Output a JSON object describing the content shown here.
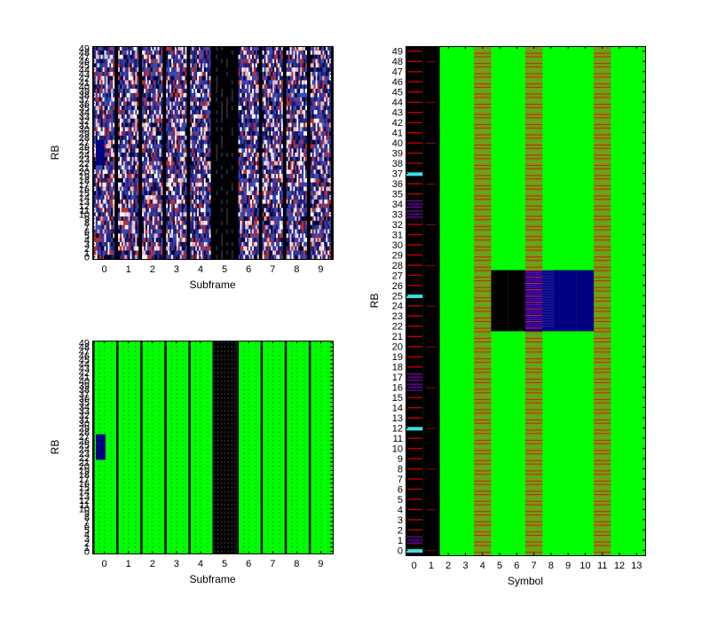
{
  "colors": {
    "green": "#00ff00",
    "black": "#000000",
    "navy": "#000080",
    "red": "#c00000",
    "cyan": "#40e0e0",
    "purple": "#8000c0",
    "white": "#ffffff"
  },
  "chart_data": [
    {
      "id": "top-left",
      "type": "heatmap",
      "content": "random-noise",
      "xlabel": "Subframe",
      "ylabel": "RB",
      "xticks": [
        "0",
        "1",
        "2",
        "3",
        "4",
        "5",
        "6",
        "7",
        "8",
        "9"
      ],
      "yticks": [
        "0",
        "1",
        "2",
        "3",
        "4",
        "5",
        "6",
        "7",
        "8",
        "9",
        "10",
        "11",
        "12",
        "13",
        "14",
        "15",
        "16",
        "17",
        "18",
        "19",
        "20",
        "21",
        "22",
        "23",
        "24",
        "25",
        "26",
        "27",
        "28",
        "29",
        "30",
        "31",
        "32",
        "33",
        "34",
        "35",
        "36",
        "37",
        "38",
        "39",
        "40",
        "41",
        "42",
        "43",
        "44",
        "45",
        "46",
        "47",
        "48",
        "49"
      ],
      "xlim": [
        -0.5,
        9.5
      ],
      "ylim": [
        -0.5,
        49.5
      ],
      "black_subframes": [
        5
      ],
      "highlight": {
        "subframe": 0,
        "rb_range": [
          22,
          27
        ],
        "color": "navy"
      }
    },
    {
      "id": "bottom-left",
      "type": "heatmap",
      "content": "allocation-grid",
      "xlabel": "Subframe",
      "ylabel": "RB",
      "xticks": [
        "0",
        "1",
        "2",
        "3",
        "4",
        "5",
        "6",
        "7",
        "8",
        "9"
      ],
      "yticks": [
        "0",
        "1",
        "2",
        "3",
        "4",
        "5",
        "6",
        "7",
        "8",
        "9",
        "10",
        "11",
        "12",
        "13",
        "14",
        "15",
        "16",
        "17",
        "18",
        "19",
        "20",
        "21",
        "22",
        "23",
        "24",
        "25",
        "26",
        "27",
        "28",
        "29",
        "30",
        "31",
        "32",
        "33",
        "34",
        "35",
        "36",
        "37",
        "38",
        "39",
        "40",
        "41",
        "42",
        "43",
        "44",
        "45",
        "46",
        "47",
        "48",
        "49"
      ],
      "xlim": [
        -0.5,
        9.5
      ],
      "ylim": [
        -0.5,
        49.5
      ],
      "black_subframes": [
        5
      ],
      "highlight": {
        "subframe": 0,
        "rb_range": [
          22,
          27
        ],
        "color": "navy"
      }
    },
    {
      "id": "right",
      "type": "heatmap",
      "content": "symbol-grid",
      "xlabel": "Symbol",
      "ylabel": "RB",
      "xticks": [
        "0",
        "1",
        "2",
        "3",
        "4",
        "5",
        "6",
        "7",
        "8",
        "9",
        "10",
        "11",
        "12",
        "13"
      ],
      "yticks": [
        "0",
        "1",
        "2",
        "3",
        "4",
        "5",
        "6",
        "7",
        "8",
        "9",
        "10",
        "11",
        "12",
        "13",
        "14",
        "15",
        "16",
        "17",
        "18",
        "19",
        "20",
        "21",
        "22",
        "23",
        "24",
        "25",
        "26",
        "27",
        "28",
        "29",
        "30",
        "31",
        "32",
        "33",
        "34",
        "35",
        "36",
        "37",
        "38",
        "39",
        "40",
        "41",
        "42",
        "43",
        "44",
        "45",
        "46",
        "47",
        "48",
        "49"
      ],
      "xlim": [
        -0.5,
        13.5
      ],
      "ylim": [
        -0.5,
        49.5
      ],
      "black_symbols": [
        1
      ],
      "control_symbol": 0,
      "cyan_rbs": [
        0,
        12,
        25,
        37
      ],
      "purple_rbs": [
        1,
        16,
        17,
        33,
        34
      ],
      "reference_symbols": [
        4,
        7,
        11
      ],
      "pdsch_block": {
        "rb_range": [
          22,
          27
        ],
        "black_symbols": [
          5,
          6
        ],
        "mixed_symbol": 7,
        "navy_symbols": [
          8,
          9,
          10
        ]
      }
    }
  ]
}
